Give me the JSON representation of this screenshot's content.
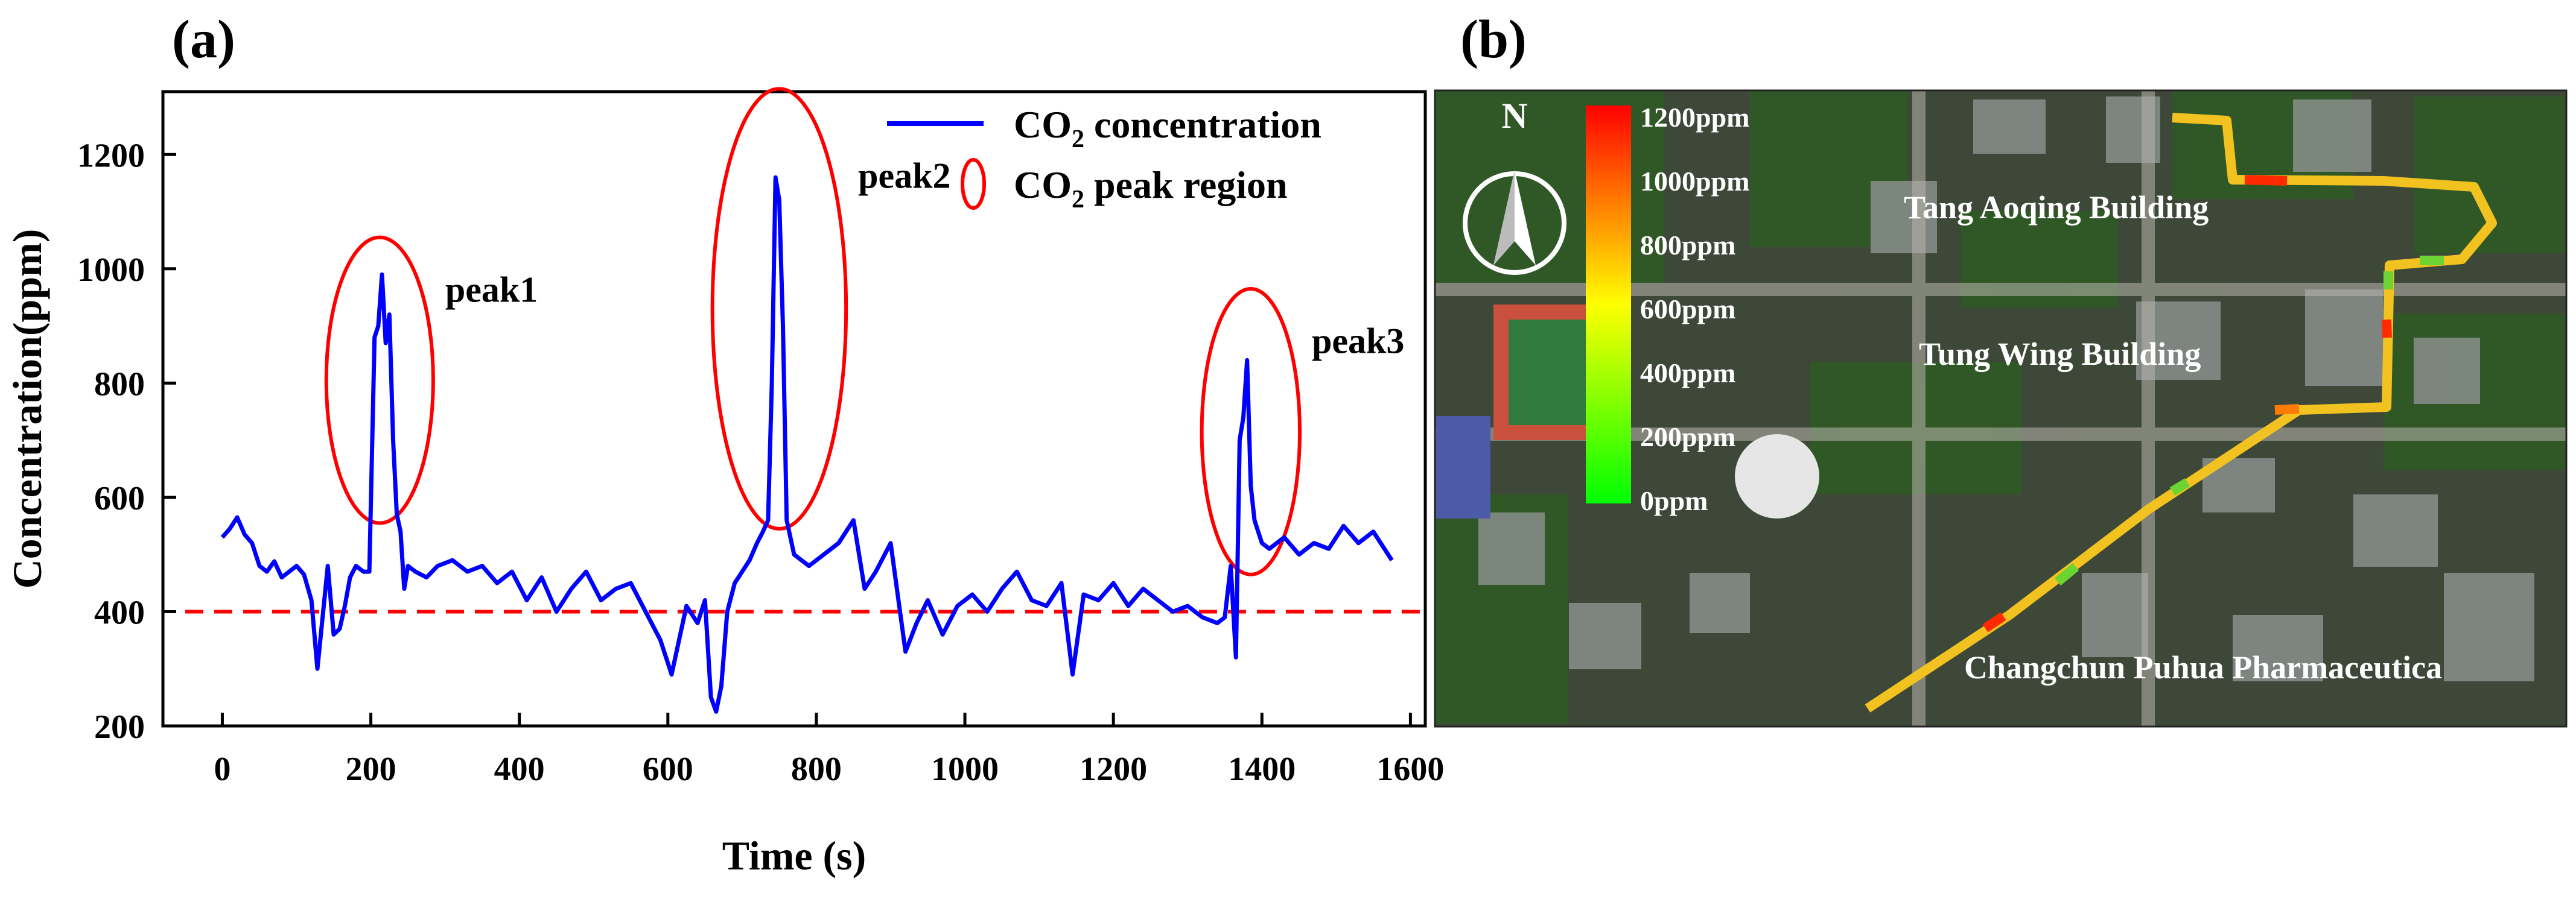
{
  "panels": {
    "a_label": "(a)",
    "b_label": "(b)"
  },
  "chart_data": {
    "type": "line",
    "title": "",
    "xlabel": "Time (s)",
    "ylabel": "Concentration(ppm)",
    "xlim": [
      -80,
      1620
    ],
    "ylim": [
      200,
      1310
    ],
    "xticks": [
      0,
      200,
      400,
      600,
      800,
      1000,
      1200,
      1400,
      1600
    ],
    "yticks": [
      200,
      400,
      600,
      800,
      1000,
      1200
    ],
    "grid": false,
    "legend_position": "top-right",
    "series": [
      {
        "name": "CO2 concentration",
        "legend_main": "CO",
        "legend_sub": "2",
        "legend_rest": " concentration",
        "color": "#0000ff",
        "x": [
          0,
          10,
          20,
          30,
          40,
          50,
          60,
          70,
          80,
          90,
          100,
          110,
          120,
          128,
          135,
          142,
          150,
          158,
          165,
          172,
          180,
          190,
          198,
          205,
          210,
          215,
          220,
          225,
          230,
          235,
          240,
          245,
          250,
          260,
          275,
          290,
          310,
          330,
          350,
          370,
          390,
          410,
          430,
          450,
          470,
          490,
          510,
          530,
          550,
          570,
          590,
          605,
          615,
          625,
          640,
          650,
          658,
          665,
          672,
          680,
          690,
          700,
          710,
          720,
          728,
          735,
          740,
          745,
          750,
          755,
          760,
          770,
          790,
          810,
          830,
          850,
          865,
          880,
          900,
          920,
          935,
          950,
          970,
          990,
          1010,
          1030,
          1050,
          1070,
          1090,
          1110,
          1130,
          1145,
          1160,
          1180,
          1200,
          1220,
          1240,
          1260,
          1280,
          1300,
          1320,
          1340,
          1350,
          1358,
          1365,
          1370,
          1375,
          1380,
          1385,
          1390,
          1395,
          1400,
          1410,
          1430,
          1450,
          1470,
          1490,
          1510,
          1530,
          1550,
          1565,
          1575
        ],
        "y": [
          530,
          545,
          565,
          535,
          520,
          480,
          470,
          488,
          460,
          470,
          480,
          465,
          420,
          300,
          390,
          480,
          360,
          370,
          410,
          460,
          480,
          470,
          470,
          880,
          900,
          990,
          870,
          920,
          700,
          570,
          540,
          440,
          480,
          470,
          460,
          480,
          490,
          470,
          480,
          450,
          470,
          420,
          460,
          400,
          440,
          470,
          420,
          440,
          450,
          400,
          350,
          290,
          350,
          410,
          380,
          420,
          250,
          225,
          270,
          400,
          450,
          470,
          490,
          520,
          540,
          560,
          800,
          1160,
          1120,
          900,
          560,
          500,
          480,
          500,
          520,
          560,
          440,
          470,
          520,
          330,
          380,
          420,
          360,
          410,
          430,
          400,
          440,
          470,
          420,
          410,
          450,
          290,
          430,
          420,
          450,
          410,
          440,
          420,
          400,
          410,
          390,
          380,
          390,
          480,
          320,
          700,
          740,
          840,
          620,
          560,
          540,
          520,
          510,
          530,
          500,
          520,
          510,
          550,
          520,
          540,
          510,
          490
        ]
      }
    ],
    "baseline": {
      "value": 400,
      "color": "#ff0000"
    },
    "peak_region_legend_main": "CO",
    "peak_region_legend_sub": "2",
    "peak_region_legend_rest": " peak region",
    "peak_region_color": "#ff0000",
    "peaks": [
      {
        "label": "peak1",
        "cx": 212,
        "cy": 805,
        "rx": 72,
        "ry": 250
      },
      {
        "label": "peak2",
        "cx": 750,
        "cy": 930,
        "rx": 90,
        "ry": 385
      },
      {
        "label": "peak3",
        "cx": 1385,
        "cy": 715,
        "rx": 66,
        "ry": 250
      }
    ]
  },
  "map": {
    "scale_labels": [
      "1200ppm",
      "1000ppm",
      "800ppm",
      "600ppm",
      "400ppm",
      "200ppm",
      "0ppm"
    ],
    "compass_label": "N",
    "buildings": [
      "Tang Aoqing Building",
      "Tung Wing Building",
      "Changchun Puhua Pharmaceutica"
    ],
    "colors": {
      "high": "#ff0000",
      "mid": "#ffff00",
      "low": "#00ff00"
    }
  }
}
